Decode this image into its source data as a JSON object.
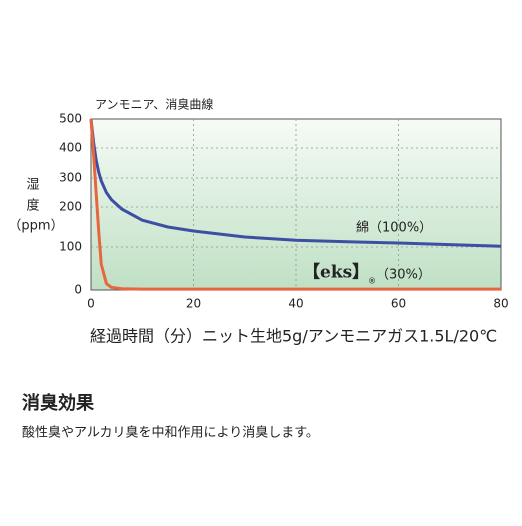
{
  "chart_data": {
    "type": "line",
    "title": "アンモニア、消臭曲線",
    "y_label": [
      "湿",
      "度",
      "（ppm）"
    ],
    "x_label": "経過時間（分）ニット生地5g/アンモニアガス1.5L/20℃",
    "x": [
      0,
      0.5,
      1,
      1.5,
      2,
      3,
      4,
      6,
      10,
      15,
      20,
      30,
      40,
      50,
      60,
      70,
      80
    ],
    "series": [
      {
        "name": "綿（100%）",
        "color": "#3d4fa3",
        "values": [
          500,
          420,
          360,
          320,
          290,
          250,
          225,
          195,
          167,
          150,
          140,
          125,
          117,
          113,
          110,
          106,
          102
        ]
      },
      {
        "name": "（30%）",
        "brand": "【eks】",
        "mark": "®",
        "color": "#e8663e",
        "values": [
          500,
          380,
          250,
          140,
          60,
          15,
          6,
          3,
          2,
          2,
          2,
          2,
          2,
          2,
          2,
          2,
          2
        ]
      }
    ],
    "xlim": [
      0,
      80
    ],
    "xticks": [
      0,
      20,
      40,
      60,
      80
    ],
    "ylim": [
      0,
      500
    ],
    "yticks": [
      0,
      100,
      200,
      300,
      400,
      500
    ],
    "grid": true
  },
  "section": {
    "heading": "消臭効果",
    "body": "酸性臭やアルカリ臭を中和作用により消臭します。"
  }
}
